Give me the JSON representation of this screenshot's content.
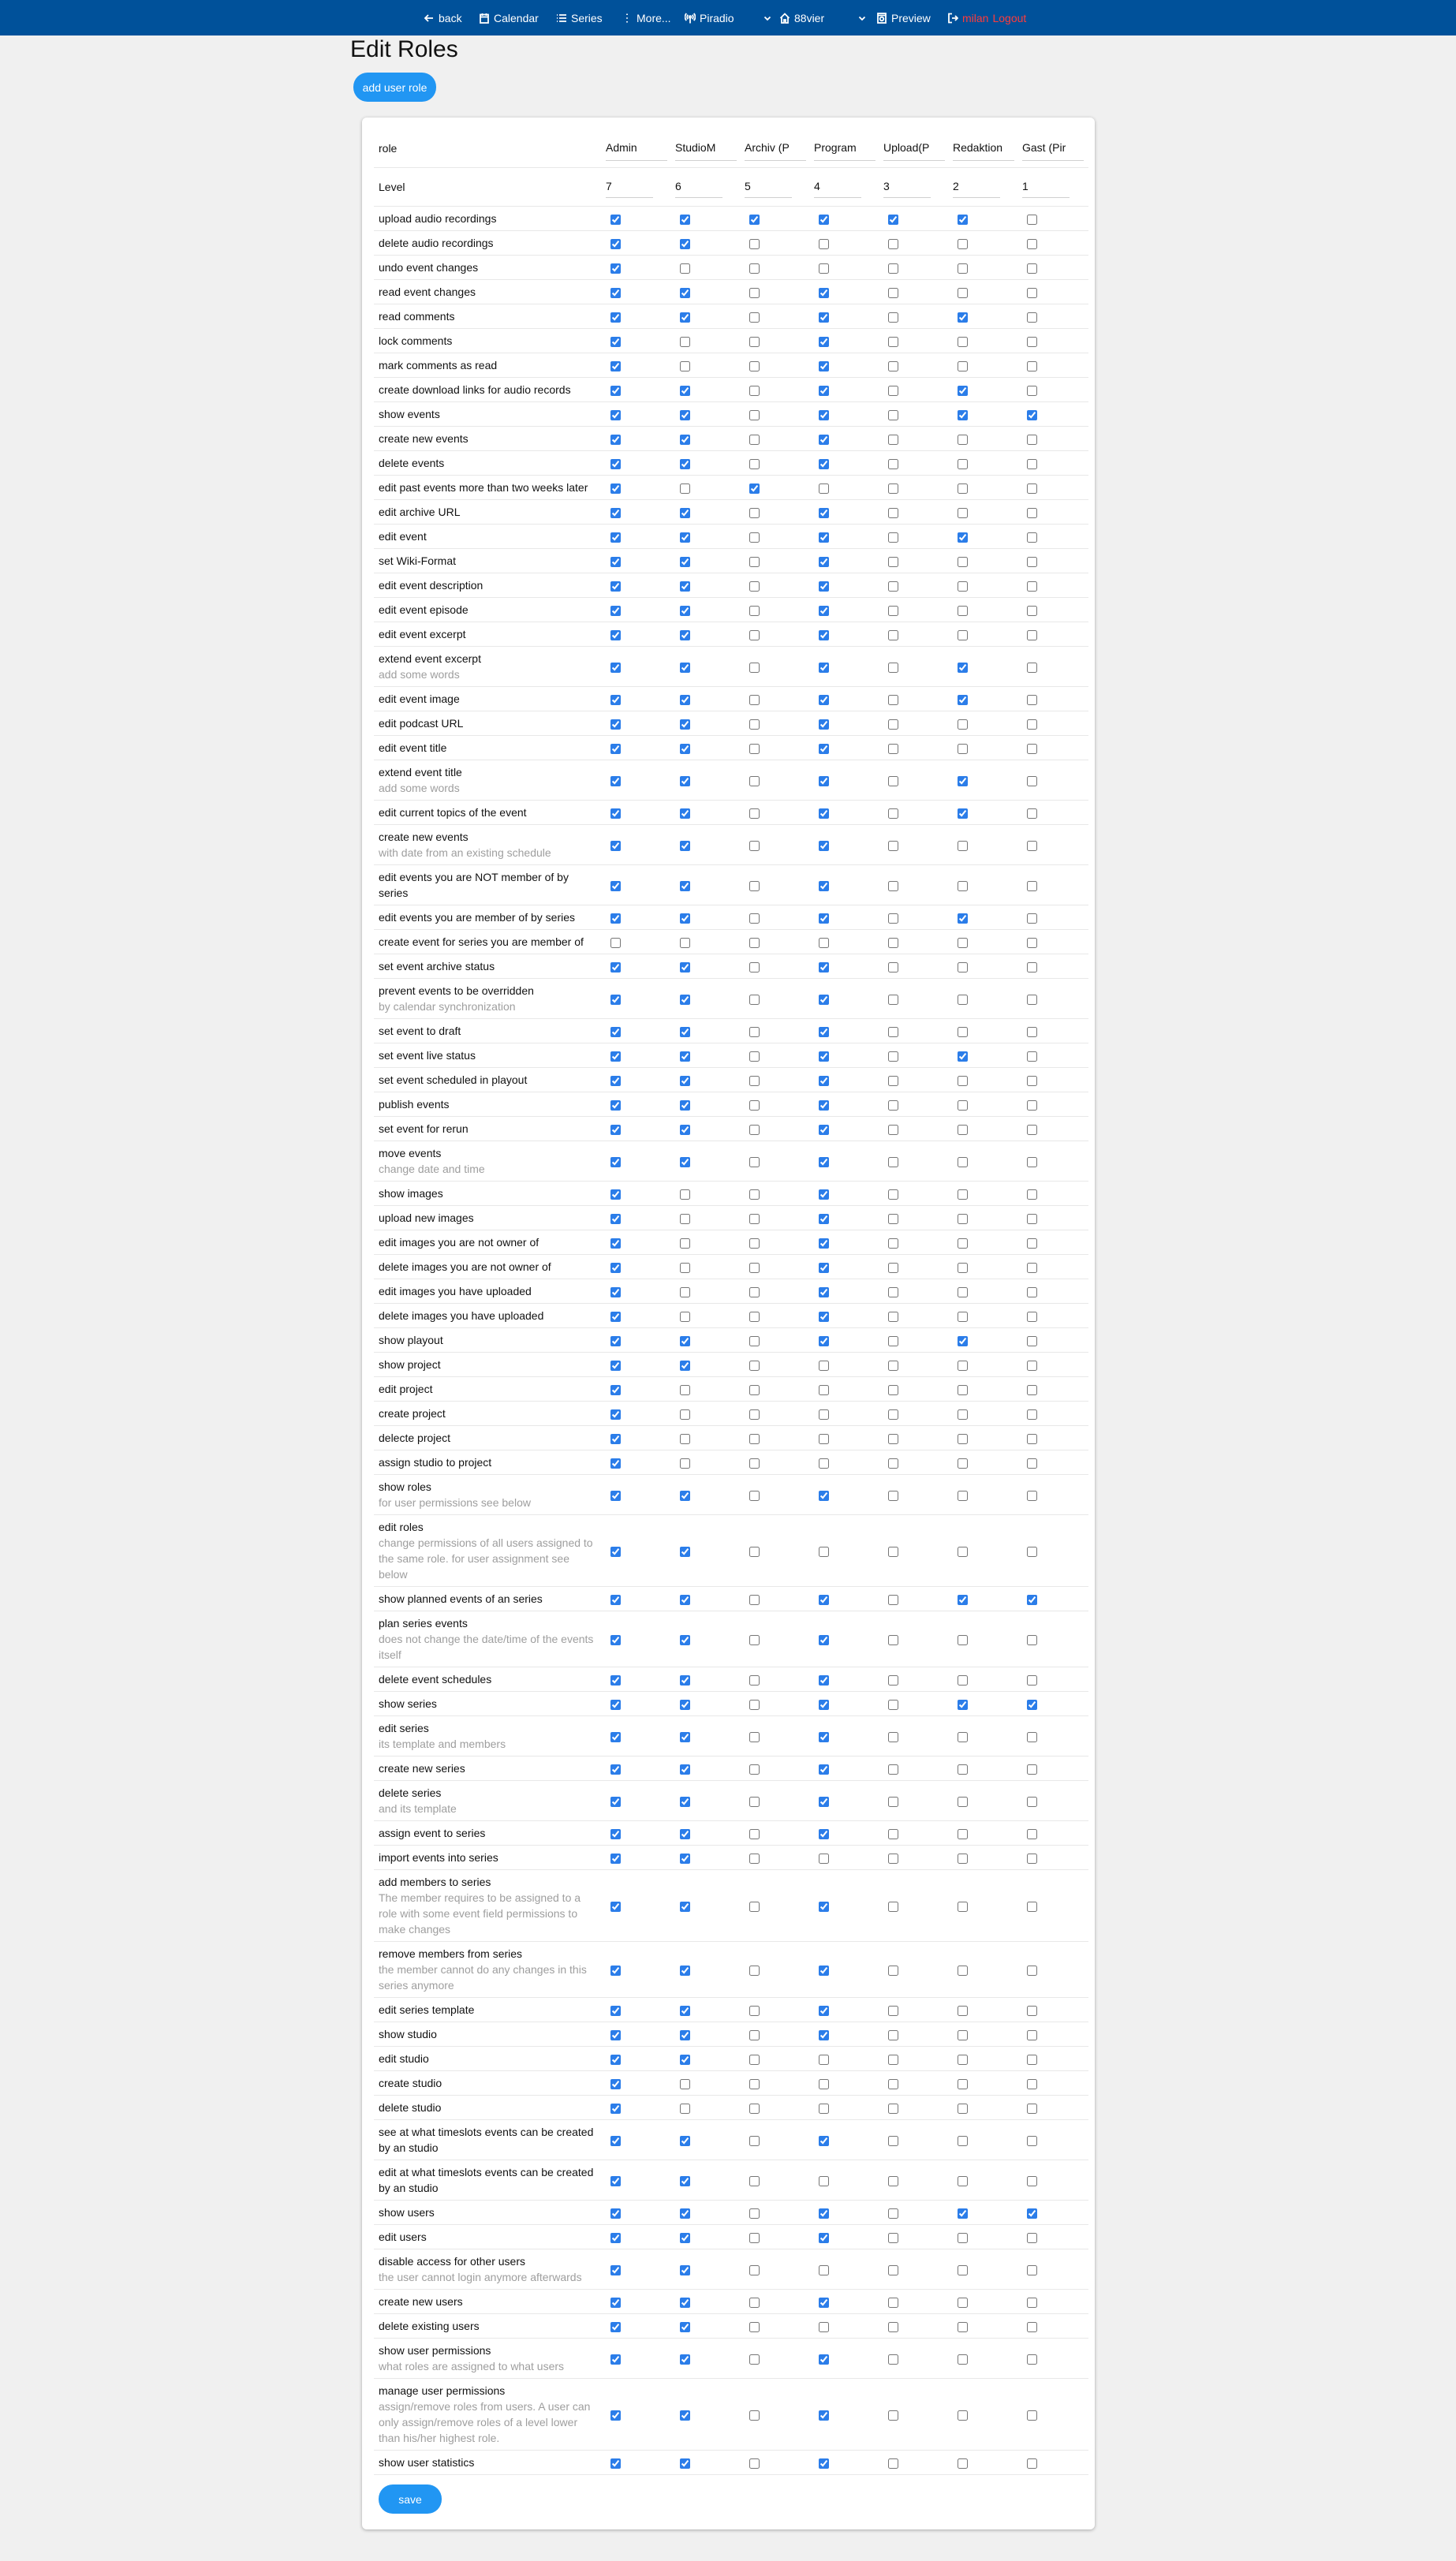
{
  "nav": {
    "back": "back",
    "calendar": "Calendar",
    "series": "Series",
    "more": "More...",
    "project": "Piradio",
    "studio": "88vier",
    "preview": "Preview",
    "user": "milan",
    "logout": "Logout",
    "colors": {
      "bar": "#00519a",
      "logout": "#ff3b3b"
    }
  },
  "page": {
    "title": "Edit Roles",
    "add_role_label": "add user role",
    "save_label": "save"
  },
  "colors": {
    "accent": "#2196f3",
    "checkbox": "#2b7de9"
  },
  "table": {
    "role_label": "role",
    "level_label": "Level",
    "roles": [
      {
        "name": "Admin",
        "level": "7"
      },
      {
        "name": "StudioM",
        "level": "6"
      },
      {
        "name": "Archiv (P",
        "level": "5"
      },
      {
        "name": "Program",
        "level": "4"
      },
      {
        "name": "Upload(P",
        "level": "3"
      },
      {
        "name": "Redaktion",
        "level": "2"
      },
      {
        "name": "Gast (Pir",
        "level": "1"
      }
    ],
    "permissions": [
      {
        "label": "upload audio recordings",
        "checked": [
          1,
          1,
          1,
          1,
          1,
          1,
          0
        ]
      },
      {
        "label": "delete audio recordings",
        "checked": [
          1,
          1,
          0,
          0,
          0,
          0,
          0
        ]
      },
      {
        "label": "undo event changes",
        "checked": [
          1,
          0,
          0,
          0,
          0,
          0,
          0
        ]
      },
      {
        "label": "read event changes",
        "checked": [
          1,
          1,
          0,
          1,
          0,
          0,
          0
        ]
      },
      {
        "label": "read comments",
        "checked": [
          1,
          1,
          0,
          1,
          0,
          1,
          0
        ]
      },
      {
        "label": "lock comments",
        "checked": [
          1,
          0,
          0,
          1,
          0,
          0,
          0
        ]
      },
      {
        "label": "mark comments as read",
        "checked": [
          1,
          0,
          0,
          1,
          0,
          0,
          0
        ]
      },
      {
        "label": "create download links for audio records",
        "checked": [
          1,
          1,
          0,
          1,
          0,
          1,
          0
        ]
      },
      {
        "label": "show events",
        "checked": [
          1,
          1,
          0,
          1,
          0,
          1,
          1
        ]
      },
      {
        "label": "create new events",
        "checked": [
          1,
          1,
          0,
          1,
          0,
          0,
          0
        ]
      },
      {
        "label": "delete events",
        "checked": [
          1,
          1,
          0,
          1,
          0,
          0,
          0
        ]
      },
      {
        "label": "edit past events more than two weeks later",
        "checked": [
          1,
          0,
          1,
          0,
          0,
          0,
          0
        ]
      },
      {
        "label": "edit archive URL",
        "checked": [
          1,
          1,
          0,
          1,
          0,
          0,
          0
        ]
      },
      {
        "label": "edit event",
        "checked": [
          1,
          1,
          0,
          1,
          0,
          1,
          0
        ]
      },
      {
        "label": "set Wiki-Format",
        "checked": [
          1,
          1,
          0,
          1,
          0,
          0,
          0
        ]
      },
      {
        "label": "edit event description",
        "checked": [
          1,
          1,
          0,
          1,
          0,
          0,
          0
        ]
      },
      {
        "label": "edit event episode",
        "checked": [
          1,
          1,
          0,
          1,
          0,
          0,
          0
        ]
      },
      {
        "label": "edit event excerpt",
        "checked": [
          1,
          1,
          0,
          1,
          0,
          0,
          0
        ]
      },
      {
        "label": "extend event excerpt",
        "desc": "add some words",
        "checked": [
          1,
          1,
          0,
          1,
          0,
          1,
          0
        ]
      },
      {
        "label": "edit event image",
        "checked": [
          1,
          1,
          0,
          1,
          0,
          1,
          0
        ]
      },
      {
        "label": "edit podcast URL",
        "checked": [
          1,
          1,
          0,
          1,
          0,
          0,
          0
        ]
      },
      {
        "label": "edit event title",
        "checked": [
          1,
          1,
          0,
          1,
          0,
          0,
          0
        ]
      },
      {
        "label": "extend event title",
        "desc": "add some words",
        "checked": [
          1,
          1,
          0,
          1,
          0,
          1,
          0
        ]
      },
      {
        "label": "edit current topics of the event",
        "checked": [
          1,
          1,
          0,
          1,
          0,
          1,
          0
        ]
      },
      {
        "label": "create new events",
        "desc": "with date from an existing schedule",
        "checked": [
          1,
          1,
          0,
          1,
          0,
          0,
          0
        ]
      },
      {
        "label": "edit events you are NOT member of by series",
        "checked": [
          1,
          1,
          0,
          1,
          0,
          0,
          0
        ]
      },
      {
        "label": "edit events you are member of by series",
        "checked": [
          1,
          1,
          0,
          1,
          0,
          1,
          0
        ]
      },
      {
        "label": "create event for series you are member of",
        "checked": [
          0,
          0,
          0,
          0,
          0,
          0,
          0
        ]
      },
      {
        "label": "set event archive status",
        "checked": [
          1,
          1,
          0,
          1,
          0,
          0,
          0
        ]
      },
      {
        "label": "prevent events to be overridden",
        "desc": "by calendar synchronization",
        "checked": [
          1,
          1,
          0,
          1,
          0,
          0,
          0
        ]
      },
      {
        "label": "set event to draft",
        "checked": [
          1,
          1,
          0,
          1,
          0,
          0,
          0
        ]
      },
      {
        "label": "set event live status",
        "checked": [
          1,
          1,
          0,
          1,
          0,
          1,
          0
        ]
      },
      {
        "label": "set event scheduled in playout",
        "checked": [
          1,
          1,
          0,
          1,
          0,
          0,
          0
        ]
      },
      {
        "label": "publish events",
        "checked": [
          1,
          1,
          0,
          1,
          0,
          0,
          0
        ]
      },
      {
        "label": "set event for rerun",
        "checked": [
          1,
          1,
          0,
          1,
          0,
          0,
          0
        ]
      },
      {
        "label": "move events",
        "desc": "change date and time",
        "checked": [
          1,
          1,
          0,
          1,
          0,
          0,
          0
        ]
      },
      {
        "label": "show images",
        "checked": [
          1,
          0,
          0,
          1,
          0,
          0,
          0
        ]
      },
      {
        "label": "upload new images",
        "checked": [
          1,
          0,
          0,
          1,
          0,
          0,
          0
        ]
      },
      {
        "label": "edit images you are not owner of",
        "checked": [
          1,
          0,
          0,
          1,
          0,
          0,
          0
        ]
      },
      {
        "label": "delete images you are not owner of",
        "checked": [
          1,
          0,
          0,
          1,
          0,
          0,
          0
        ]
      },
      {
        "label": "edit images you have uploaded",
        "checked": [
          1,
          0,
          0,
          1,
          0,
          0,
          0
        ]
      },
      {
        "label": "delete images you have uploaded",
        "checked": [
          1,
          0,
          0,
          1,
          0,
          0,
          0
        ]
      },
      {
        "label": "show playout",
        "checked": [
          1,
          1,
          0,
          1,
          0,
          1,
          0
        ]
      },
      {
        "label": "show project",
        "checked": [
          1,
          1,
          0,
          0,
          0,
          0,
          0
        ]
      },
      {
        "label": "edit project",
        "checked": [
          1,
          0,
          0,
          0,
          0,
          0,
          0
        ]
      },
      {
        "label": "create project",
        "checked": [
          1,
          0,
          0,
          0,
          0,
          0,
          0
        ]
      },
      {
        "label": "delecte project",
        "checked": [
          1,
          0,
          0,
          0,
          0,
          0,
          0
        ]
      },
      {
        "label": "assign studio to project",
        "checked": [
          1,
          0,
          0,
          0,
          0,
          0,
          0
        ]
      },
      {
        "label": "show roles",
        "desc": "for user permissions see below",
        "checked": [
          1,
          1,
          0,
          1,
          0,
          0,
          0
        ]
      },
      {
        "label": "edit roles",
        "desc": "change permissions of all users assigned to the same role. for user assignment see below",
        "checked": [
          1,
          1,
          0,
          0,
          0,
          0,
          0
        ]
      },
      {
        "label": "show planned events of an series",
        "checked": [
          1,
          1,
          0,
          1,
          0,
          1,
          1
        ]
      },
      {
        "label": "plan series events",
        "desc": "does not change the date/time of the events itself",
        "checked": [
          1,
          1,
          0,
          1,
          0,
          0,
          0
        ]
      },
      {
        "label": "delete event schedules",
        "checked": [
          1,
          1,
          0,
          1,
          0,
          0,
          0
        ]
      },
      {
        "label": "show series",
        "checked": [
          1,
          1,
          0,
          1,
          0,
          1,
          1
        ]
      },
      {
        "label": "edit series",
        "desc": "its template and members",
        "checked": [
          1,
          1,
          0,
          1,
          0,
          0,
          0
        ]
      },
      {
        "label": "create new series",
        "checked": [
          1,
          1,
          0,
          1,
          0,
          0,
          0
        ]
      },
      {
        "label": "delete series",
        "desc": "and its template",
        "checked": [
          1,
          1,
          0,
          1,
          0,
          0,
          0
        ]
      },
      {
        "label": "assign event to series",
        "checked": [
          1,
          1,
          0,
          1,
          0,
          0,
          0
        ]
      },
      {
        "label": "import events into series",
        "checked": [
          1,
          1,
          0,
          0,
          0,
          0,
          0
        ]
      },
      {
        "label": "add members to series",
        "desc": "The member requires to be assigned to a role with some event field permissions to make changes",
        "checked": [
          1,
          1,
          0,
          1,
          0,
          0,
          0
        ]
      },
      {
        "label": "remove members from series",
        "desc": "the member cannot do any changes in this series anymore",
        "checked": [
          1,
          1,
          0,
          1,
          0,
          0,
          0
        ]
      },
      {
        "label": "edit series template",
        "checked": [
          1,
          1,
          0,
          1,
          0,
          0,
          0
        ]
      },
      {
        "label": "show studio",
        "checked": [
          1,
          1,
          0,
          1,
          0,
          0,
          0
        ]
      },
      {
        "label": "edit studio",
        "checked": [
          1,
          1,
          0,
          0,
          0,
          0,
          0
        ]
      },
      {
        "label": "create studio",
        "checked": [
          1,
          0,
          0,
          0,
          0,
          0,
          0
        ]
      },
      {
        "label": "delete studio",
        "checked": [
          1,
          0,
          0,
          0,
          0,
          0,
          0
        ]
      },
      {
        "label": "see at what timeslots events can be created by an studio",
        "checked": [
          1,
          1,
          0,
          1,
          0,
          0,
          0
        ]
      },
      {
        "label": "edit at what timeslots events can be created by an studio",
        "checked": [
          1,
          1,
          0,
          0,
          0,
          0,
          0
        ]
      },
      {
        "label": "show users",
        "checked": [
          1,
          1,
          0,
          1,
          0,
          1,
          1
        ]
      },
      {
        "label": "edit users",
        "checked": [
          1,
          1,
          0,
          1,
          0,
          0,
          0
        ]
      },
      {
        "label": "disable access for other users",
        "desc": "the user cannot login anymore afterwards",
        "checked": [
          1,
          1,
          0,
          0,
          0,
          0,
          0
        ]
      },
      {
        "label": "create new users",
        "checked": [
          1,
          1,
          0,
          1,
          0,
          0,
          0
        ]
      },
      {
        "label": "delete existing users",
        "checked": [
          1,
          1,
          0,
          0,
          0,
          0,
          0
        ]
      },
      {
        "label": "show user permissions",
        "desc": "what roles are assigned to what users",
        "checked": [
          1,
          1,
          0,
          1,
          0,
          0,
          0
        ]
      },
      {
        "label": "manage user permissions",
        "desc": "assign/remove roles from users. A user can only assign/remove roles of a level lower than his/her highest role.",
        "checked": [
          1,
          1,
          0,
          1,
          0,
          0,
          0
        ]
      },
      {
        "label": "show user statistics",
        "checked": [
          1,
          1,
          0,
          1,
          0,
          0,
          0
        ]
      }
    ]
  }
}
